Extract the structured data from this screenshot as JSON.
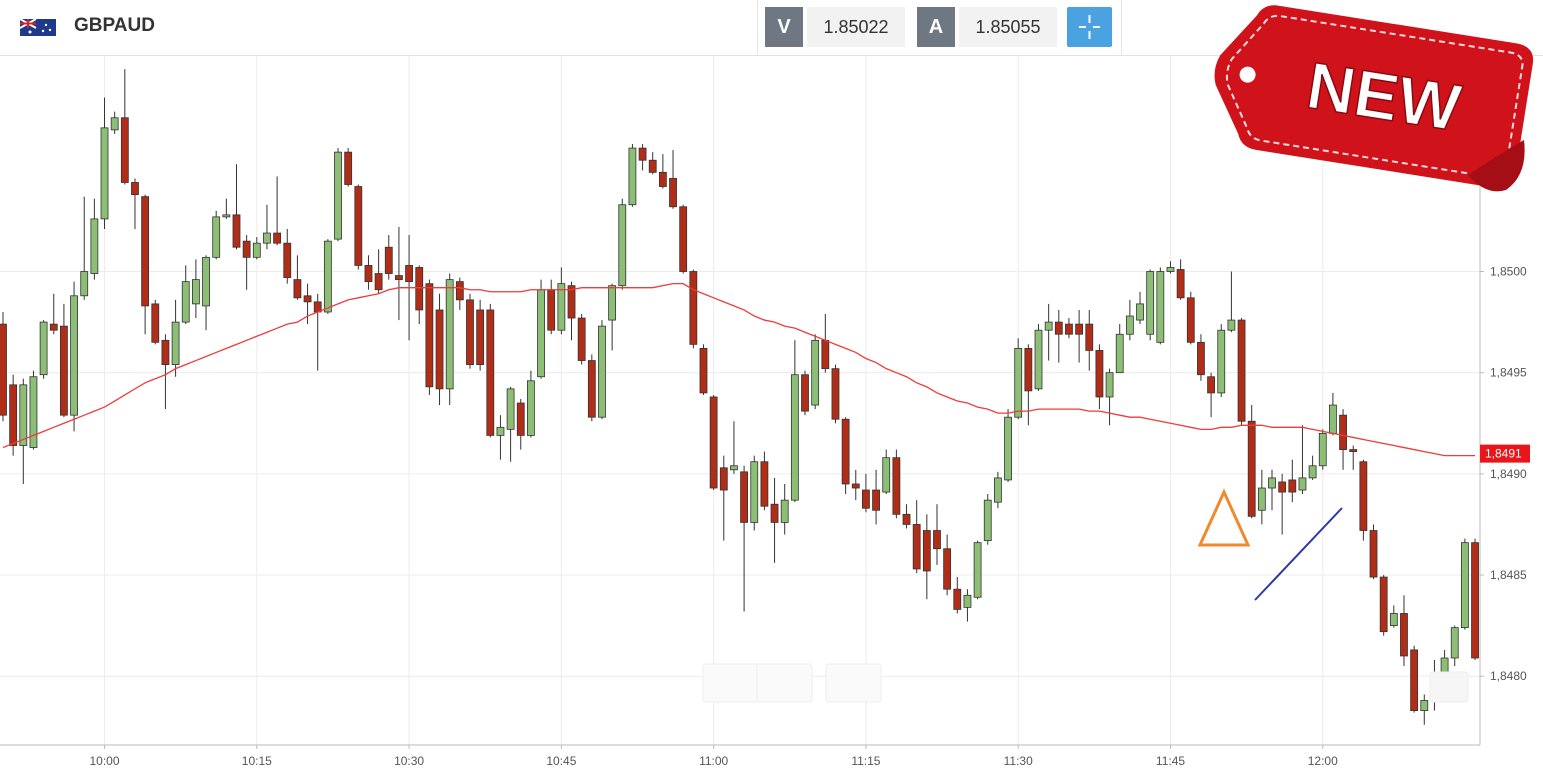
{
  "header": {
    "symbol": "GBPAUD",
    "bid_label": "V",
    "bid": "1.85022",
    "ask_label": "A",
    "ask": "1.85055"
  },
  "badge": "NEW",
  "chart_data": {
    "type": "candlestick",
    "categories": [
      null,
      null,
      null,
      null,
      null,
      null,
      null,
      null,
      null,
      null,
      "10:00",
      null,
      null,
      null,
      null,
      null,
      null,
      null,
      null,
      null,
      null,
      null,
      null,
      null,
      null,
      "10:15",
      null,
      null,
      null,
      null,
      null,
      null,
      null,
      null,
      null,
      null,
      null,
      null,
      null,
      null,
      "10:30",
      null,
      null,
      null,
      null,
      null,
      null,
      null,
      null,
      null,
      null,
      null,
      null,
      null,
      null,
      "10:45",
      null,
      null,
      null,
      null,
      null,
      null,
      null,
      null,
      null,
      null,
      null,
      null,
      null,
      null,
      "11:00",
      null,
      null,
      null,
      null,
      null,
      null,
      null,
      null,
      null,
      null,
      null,
      null,
      null,
      null,
      "11:15",
      null,
      null,
      null,
      null,
      null,
      null,
      null,
      null,
      null,
      null,
      null,
      null,
      null,
      null,
      "11:30",
      null,
      null,
      null,
      null,
      null,
      null,
      null,
      null,
      null,
      null,
      null,
      null,
      null,
      null,
      "11:45",
      null,
      null,
      null,
      null,
      null,
      null,
      null,
      null,
      null,
      null,
      null,
      null,
      null,
      null,
      "12:00",
      null,
      null,
      null,
      null,
      null,
      null,
      null,
      null,
      null,
      null,
      null,
      null,
      null,
      null,
      null
    ],
    "open": [
      1.84974,
      1.84944,
      1.84914,
      1.84913,
      1.84949,
      1.84974,
      1.84973,
      1.84929,
      1.84988,
      1.84999,
      1.85026,
      1.8507,
      1.85076,
      1.85044,
      1.85037,
      1.84984,
      1.84966,
      1.84954,
      1.84975,
      1.84984,
      1.84983,
      1.85007,
      1.85027,
      1.85028,
      1.85015,
      1.85007,
      1.85014,
      1.85019,
      1.85014,
      1.84996,
      1.84988,
      1.84985,
      1.8498,
      1.85016,
      1.85059,
      1.85042,
      1.85003,
      1.84999,
      1.85012,
      1.84998,
      1.85003,
      1.85002,
      1.84994,
      1.84981,
      1.84942,
      1.84995,
      1.84986,
      1.84981,
      1.84981,
      1.84919,
      1.84922,
      1.84935,
      1.84919,
      1.84948,
      1.84991,
      1.84971,
      1.84993,
      1.84977,
      1.84956,
      1.84928,
      1.84976,
      1.84993,
      1.85033,
      1.85061,
      1.85055,
      1.85049,
      1.85046,
      1.85032,
      1.85,
      1.84962,
      1.84938,
      1.84903,
      1.84902,
      1.84901,
      1.84876,
      1.84906,
      1.84885,
      1.84876,
      1.84887,
      1.84949,
      1.84934,
      1.84966,
      1.84952,
      1.84927,
      1.84895,
      1.84892,
      1.84892,
      1.84891,
      1.84908,
      1.8488,
      1.84875,
      1.84872,
      1.84872,
      1.84863,
      1.84843,
      1.84834,
      1.84839,
      1.84867,
      1.84886,
      1.84897,
      1.84928,
      1.84962,
      1.84942,
      1.84971,
      1.84975,
      1.84974,
      1.84974,
      1.84974,
      1.84961,
      1.84938,
      1.8495,
      1.84969,
      1.84976,
      1.84969,
      1.84965,
      1.85,
      1.85001,
      1.84987,
      1.84965,
      1.84948,
      1.8494,
      1.84971,
      1.84976,
      1.84926,
      1.84882,
      1.84893,
      1.84896,
      1.84897,
      1.84892,
      1.84898,
      1.84904,
      1.8492,
      1.84929,
      1.84912,
      1.84906,
      1.84872,
      1.84849,
      1.84825,
      1.84831,
      1.84813,
      1.84783,
      1.84788,
      1.84801,
      1.84809,
      1.84824,
      1.84866
    ],
    "high": [
      1.8498,
      1.84949,
      1.84947,
      1.84951,
      1.84976,
      1.84989,
      1.84984,
      1.84995,
      1.85037,
      1.85036,
      1.85086,
      1.85079,
      1.851,
      1.85046,
      1.85038,
      1.84986,
      1.84969,
      1.84986,
      1.85003,
      1.85006,
      1.85008,
      1.8503,
      1.85036,
      1.85053,
      1.85018,
      1.85017,
      1.85033,
      1.85047,
      1.85021,
      1.85008,
      1.84994,
      1.84989,
      1.85016,
      1.85061,
      1.85061,
      1.85043,
      1.85008,
      1.85011,
      1.85018,
      1.85022,
      1.85018,
      1.85003,
      1.84996,
      1.84989,
      1.84999,
      1.84997,
      1.84989,
      1.84986,
      1.84984,
      1.84929,
      1.84943,
      1.84937,
      1.84951,
      1.84996,
      1.84996,
      1.85002,
      1.84995,
      1.84979,
      1.84959,
      1.84976,
      1.84994,
      1.85036,
      1.85063,
      1.85063,
      1.85059,
      1.85058,
      1.8506,
      1.85033,
      1.85001,
      1.84964,
      1.84939,
      1.84909,
      1.84926,
      1.84904,
      1.84909,
      1.84911,
      1.84898,
      1.84895,
      1.84966,
      1.84951,
      1.84969,
      1.84979,
      1.84954,
      1.84928,
      1.84902,
      1.849,
      1.84902,
      1.84912,
      1.84912,
      1.84885,
      1.84887,
      1.8488,
      1.84885,
      1.8487,
      1.84849,
      1.84843,
      1.84867,
      1.8489,
      1.84901,
      1.84932,
      1.84967,
      1.84964,
      1.84974,
      1.84984,
      1.84981,
      1.84977,
      1.84981,
      1.84981,
      1.84964,
      1.84952,
      1.84974,
      1.84986,
      1.8499,
      1.85001,
      1.85002,
      1.85005,
      1.85006,
      1.8499,
      1.84969,
      1.8495,
      1.84974,
      1.85,
      1.84977,
      1.84934,
      1.84902,
      1.84902,
      1.849,
      1.84907,
      1.84924,
      1.84909,
      1.84922,
      1.8494,
      1.84932,
      1.84914,
      1.84907,
      1.84875,
      1.8485,
      1.84835,
      1.8484,
      1.84815,
      1.84791,
      1.84808,
      1.84813,
      1.84825,
      1.84868,
      1.84868
    ],
    "low": [
      1.84926,
      1.84909,
      1.84895,
      1.84912,
      1.84947,
      1.84969,
      1.84928,
      1.84921,
      1.84986,
      1.84996,
      1.85021,
      1.85068,
      1.85043,
      1.85021,
      1.84969,
      1.84964,
      1.84932,
      1.84948,
      1.84974,
      1.84977,
      1.84971,
      1.85006,
      1.85026,
      1.85011,
      1.84991,
      1.85006,
      1.85011,
      1.85013,
      1.84994,
      1.84986,
      1.84974,
      1.84951,
      1.84979,
      1.85015,
      1.85042,
      1.85001,
      1.84991,
      1.84989,
      1.84996,
      1.84976,
      1.84966,
      1.84974,
      1.84939,
      1.84934,
      1.84934,
      1.84981,
      1.84952,
      1.84951,
      1.84918,
      1.84907,
      1.84906,
      1.84912,
      1.84918,
      1.84947,
      1.84969,
      1.84969,
      1.84966,
      1.84954,
      1.84926,
      1.84927,
      1.84961,
      1.84991,
      1.85032,
      1.8505,
      1.85048,
      1.85041,
      1.85031,
      1.84999,
      1.84962,
      1.84939,
      1.84892,
      1.84867,
      1.849,
      1.84832,
      1.84872,
      1.84882,
      1.84856,
      1.8487,
      1.84886,
      1.84929,
      1.84932,
      1.8495,
      1.84925,
      1.8489,
      1.84887,
      1.84881,
      1.84875,
      1.8489,
      1.84878,
      1.84873,
      1.84851,
      1.84838,
      1.84855,
      1.8484,
      1.84831,
      1.84827,
      1.84838,
      1.84865,
      1.84883,
      1.84896,
      1.84927,
      1.84924,
      1.84941,
      1.84956,
      1.84955,
      1.84967,
      1.84955,
      1.84951,
      1.84932,
      1.84924,
      1.8495,
      1.84966,
      1.84974,
      1.84966,
      1.84964,
      1.84999,
      1.84986,
      1.84964,
      1.84946,
      1.84928,
      1.84938,
      1.8497,
      1.84924,
      1.84878,
      1.84875,
      1.84882,
      1.8487,
      1.84886,
      1.8489,
      1.84897,
      1.84902,
      1.84919,
      1.84902,
      1.84902,
      1.84867,
      1.84848,
      1.8482,
      1.84824,
      1.84805,
      1.84782,
      1.84776,
      1.84783,
      1.84791,
      1.84805,
      1.84823,
      1.84808
    ],
    "close": [
      1.84929,
      1.84914,
      1.84944,
      1.84948,
      1.84975,
      1.84971,
      1.84929,
      1.84988,
      1.85,
      1.85026,
      1.85071,
      1.85076,
      1.85044,
      1.85038,
      1.84983,
      1.84965,
      1.84954,
      1.84975,
      1.84995,
      1.84996,
      1.85007,
      1.85027,
      1.85028,
      1.85012,
      1.85007,
      1.85014,
      1.85019,
      1.85014,
      1.84997,
      1.84987,
      1.84985,
      1.8498,
      1.85015,
      1.85059,
      1.85043,
      1.85003,
      1.84995,
      1.84991,
      1.84999,
      1.84996,
      1.84995,
      1.84981,
      1.84943,
      1.84942,
      1.84996,
      1.84986,
      1.84954,
      1.84954,
      1.84919,
      1.84923,
      1.84942,
      1.84919,
      1.84946,
      1.84991,
      1.84971,
      1.84994,
      1.84977,
      1.84956,
      1.84928,
      1.84973,
      1.84993,
      1.85033,
      1.85061,
      1.85055,
      1.85049,
      1.85042,
      1.85032,
      1.85,
      1.84964,
      1.8494,
      1.84893,
      1.84892,
      1.84904,
      1.84876,
      1.84906,
      1.84884,
      1.84876,
      1.84887,
      1.84949,
      1.84931,
      1.84966,
      1.84952,
      1.84927,
      1.84895,
      1.84893,
      1.84883,
      1.84882,
      1.84908,
      1.8488,
      1.84875,
      1.84853,
      1.84852,
      1.84863,
      1.84843,
      1.84833,
      1.8484,
      1.84866,
      1.84887,
      1.84898,
      1.84928,
      1.84962,
      1.84941,
      1.84971,
      1.84975,
      1.84969,
      1.84969,
      1.84969,
      1.84961,
      1.84938,
      1.8495,
      1.84969,
      1.84978,
      1.84984,
      1.85,
      1.85,
      1.85002,
      1.84987,
      1.84965,
      1.84949,
      1.8494,
      1.84971,
      1.84976,
      1.84926,
      1.84879,
      1.84893,
      1.84898,
      1.84891,
      1.84891,
      1.84898,
      1.84904,
      1.8492,
      1.84934,
      1.84912,
      1.84911,
      1.84872,
      1.84849,
      1.84822,
      1.84831,
      1.8481,
      1.84783,
      1.84788,
      1.84801,
      1.84809,
      1.84824,
      1.84866,
      1.84809
    ],
    "up_color": "#8cbf75",
    "down_color": "#b02e17",
    "ma": {
      "color": "#ee3b3b",
      "values": [
        1.84913,
        1.84915,
        1.84917,
        1.84919,
        1.84921,
        1.84923,
        1.84925,
        1.84927,
        1.84929,
        1.84931,
        1.84933,
        1.84936,
        1.84939,
        1.84942,
        1.84945,
        1.84947,
        1.84949,
        1.84952,
        1.84954,
        1.84956,
        1.84958,
        1.8496,
        1.84962,
        1.84964,
        1.84966,
        1.84968,
        1.8497,
        1.84972,
        1.84974,
        1.84975,
        1.84978,
        1.8498,
        1.84982,
        1.84984,
        1.84986,
        1.84987,
        1.84988,
        1.84989,
        1.84991,
        1.84992,
        1.84992,
        1.84992,
        1.84992,
        1.84992,
        1.84992,
        1.84992,
        1.84991,
        1.84991,
        1.8499,
        1.8499,
        1.8499,
        1.8499,
        1.84991,
        1.84991,
        1.84991,
        1.84991,
        1.84991,
        1.84992,
        1.84992,
        1.84992,
        1.84992,
        1.84992,
        1.84992,
        1.84992,
        1.84992,
        1.84993,
        1.84994,
        1.84994,
        1.84991,
        1.84989,
        1.84987,
        1.84985,
        1.84983,
        1.84981,
        1.84978,
        1.84976,
        1.84975,
        1.84973,
        1.84972,
        1.8497,
        1.84968,
        1.84966,
        1.84964,
        1.84962,
        1.8496,
        1.84957,
        1.84955,
        1.84952,
        1.8495,
        1.84948,
        1.84945,
        1.84943,
        1.8494,
        1.84938,
        1.84936,
        1.84935,
        1.84933,
        1.84932,
        1.8493,
        1.8493,
        1.84931,
        1.84931,
        1.84932,
        1.84932,
        1.84932,
        1.84932,
        1.84932,
        1.84931,
        1.84931,
        1.8493,
        1.84929,
        1.84928,
        1.84928,
        1.84927,
        1.84926,
        1.84925,
        1.84924,
        1.84923,
        1.84922,
        1.84922,
        1.84923,
        1.84923,
        1.84924,
        1.84924,
        1.84924,
        1.84923,
        1.84923,
        1.84923,
        1.84923,
        1.84922,
        1.84921,
        1.8492,
        1.84919,
        1.84918,
        1.84917,
        1.84916,
        1.84915,
        1.84914,
        1.84913,
        1.84912,
        1.84911,
        1.8491,
        1.84909,
        1.84909,
        1.84909,
        1.84909
      ]
    },
    "ylim": [
      1.84766,
      1.85107
    ],
    "yticks": [
      {
        "value": 1.848,
        "label": "1,8480"
      },
      {
        "value": 1.8485,
        "label": "1,8485"
      },
      {
        "value": 1.849,
        "label": "1,8490"
      },
      {
        "value": 1.8495,
        "label": "1,8495"
      },
      {
        "value": 1.85,
        "label": "1,8500"
      }
    ],
    "last_price": {
      "value": 1.8491,
      "label": "1,8491"
    },
    "grid": true
  }
}
